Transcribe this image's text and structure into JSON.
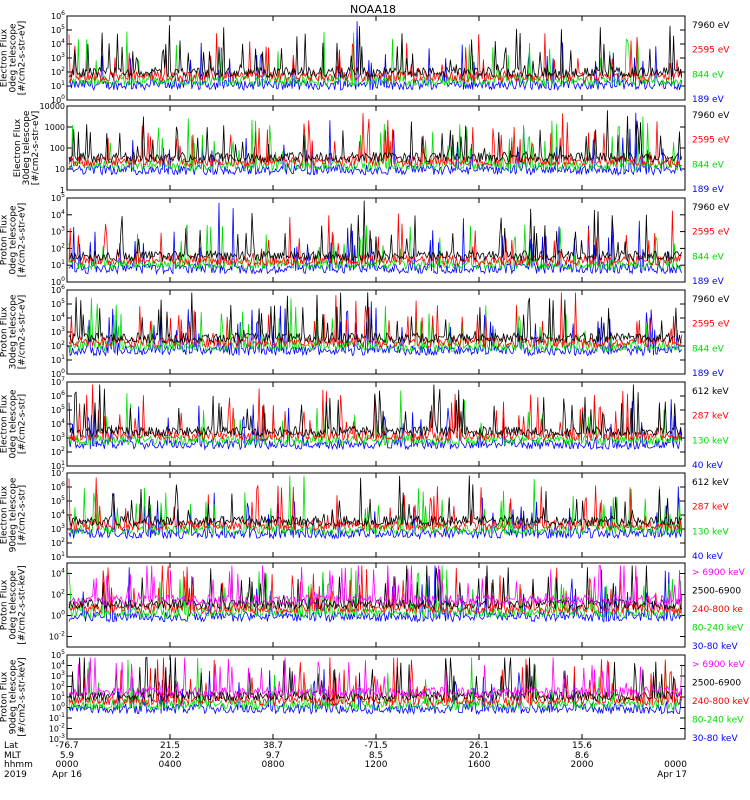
{
  "title": "NOAA18",
  "colors": {
    "black": "#000000",
    "red": "#ff0000",
    "green": "#00dd00",
    "blue": "#0000ff",
    "magenta": "#ff00ff"
  },
  "chart_data": [
    {
      "type": "line",
      "ylabel": [
        "TED",
        "Electron Flux",
        "0deg telescope",
        "[#/cm2-s-str-eV]"
      ],
      "yscale": "log",
      "ylim_exp": [
        0,
        6
      ],
      "yticks": [
        "10^0",
        "10^1",
        "10^2",
        "10^3",
        "10^4",
        "10^5",
        "10^6"
      ],
      "series": [
        {
          "name": "7960 eV",
          "color": "#000000"
        },
        {
          "name": "2595 eV",
          "color": "#ff0000"
        },
        {
          "name": "844 eV",
          "color": "#00dd00"
        },
        {
          "name": "189 eV",
          "color": "#0000ff"
        }
      ]
    },
    {
      "type": "line",
      "ylabel": [
        "Electron Flux",
        "30deg telescope",
        "[#/cm2-s-str-eV]"
      ],
      "yscale": "log",
      "ylim_exp": [
        0,
        4
      ],
      "yticks": [
        "1",
        "10",
        "100",
        "1000",
        "10000"
      ],
      "series": [
        {
          "name": "7960 eV",
          "color": "#000000"
        },
        {
          "name": "2595 eV",
          "color": "#ff0000"
        },
        {
          "name": "844 eV",
          "color": "#00dd00"
        },
        {
          "name": "189 eV",
          "color": "#0000ff"
        }
      ]
    },
    {
      "type": "line",
      "ylabel": [
        "TED",
        "Proton Flux",
        "0deg telescope",
        "[#/cm2-s-str-eV]"
      ],
      "yscale": "log",
      "ylim_exp": [
        0,
        5
      ],
      "yticks": [
        "10^0",
        "10^1",
        "10^2",
        "10^3",
        "10^4",
        "10^5"
      ],
      "series": [
        {
          "name": "7960 eV",
          "color": "#000000"
        },
        {
          "name": "2595 eV",
          "color": "#ff0000"
        },
        {
          "name": "844 eV",
          "color": "#00dd00"
        },
        {
          "name": "189 eV",
          "color": "#0000ff"
        }
      ]
    },
    {
      "type": "line",
      "ylabel": [
        "TED",
        "Proton Flux",
        "30deg telescope",
        "[#/cm2-s-str-eV]"
      ],
      "yscale": "log",
      "ylim_exp": [
        0,
        6
      ],
      "yticks": [
        "10^0",
        "10^1",
        "10^2",
        "10^3",
        "10^4",
        "10^5",
        "10^6"
      ],
      "series": [
        {
          "name": "7960 eV",
          "color": "#000000"
        },
        {
          "name": "2595 eV",
          "color": "#ff0000"
        },
        {
          "name": "844 eV",
          "color": "#00dd00"
        },
        {
          "name": "189 eV",
          "color": "#0000ff"
        }
      ]
    },
    {
      "type": "line",
      "ylabel": [
        "MEPED",
        "Electron Flux",
        "0deg telescope",
        "[#/cm2-s-str]"
      ],
      "yscale": "log",
      "ylim_exp": [
        1,
        7
      ],
      "yticks": [
        "10^1",
        "10^2",
        "10^3",
        "10^4",
        "10^5",
        "10^6",
        "10^7"
      ],
      "series": [
        {
          "name": "612 keV",
          "color": "#000000"
        },
        {
          "name": "287 keV",
          "color": "#ff0000"
        },
        {
          "name": "130 keV",
          "color": "#00dd00"
        },
        {
          "name": "40 keV",
          "color": "#0000ff"
        }
      ]
    },
    {
      "type": "line",
      "ylabel": [
        "MEPED",
        "Electron Flux",
        "90deg telescope",
        "[#/cm2-s-str]"
      ],
      "yscale": "log",
      "ylim_exp": [
        1,
        7
      ],
      "yticks": [
        "10^1",
        "10^2",
        "10^3",
        "10^4",
        "10^5",
        "10^6",
        "10^7"
      ],
      "series": [
        {
          "name": "612 keV",
          "color": "#000000"
        },
        {
          "name": "287 keV",
          "color": "#ff0000"
        },
        {
          "name": "130 keV",
          "color": "#00dd00"
        },
        {
          "name": "40 keV",
          "color": "#0000ff"
        }
      ]
    },
    {
      "type": "line",
      "ylabel": [
        "MEPED",
        "Proton Flux",
        "0deg telescope",
        "[#/cm2-s-str-keV]"
      ],
      "yscale": "log",
      "ylim_exp": [
        -3,
        5
      ],
      "yticks": [
        "10^-2",
        "10^0",
        "10^2",
        "10^4"
      ],
      "series": [
        {
          "name": "> 6900 keV",
          "color": "#ff00ff"
        },
        {
          "name": "2500-6900",
          "color": "#000000"
        },
        {
          "name": "240-800 ke",
          "color": "#ff0000"
        },
        {
          "name": "80-240 keV",
          "color": "#00dd00"
        },
        {
          "name": "30-80 keV",
          "color": "#0000ff"
        }
      ]
    },
    {
      "type": "line",
      "ylabel": [
        "MEPED",
        "Proton Flux",
        "90deg telescope",
        "[#/cm2-s-str-keV]"
      ],
      "yscale": "log",
      "ylim_exp": [
        -3,
        5
      ],
      "yticks": [
        "10^-3",
        "10^-2",
        "10^-1",
        "10^0",
        "10^1",
        "10^2",
        "10^3",
        "10^4",
        "10^5"
      ],
      "series": [
        {
          "name": "> 6900 keV",
          "color": "#ff00ff"
        },
        {
          "name": "2500-6900",
          "color": "#000000"
        },
        {
          "name": "240-800 keV",
          "color": "#ff0000"
        },
        {
          "name": "80-240 keV",
          "color": "#00dd00"
        },
        {
          "name": "30-80 keV",
          "color": "#0000ff"
        }
      ]
    }
  ],
  "x_axis": {
    "row_labels": [
      "Lat",
      "MLT",
      "hhmm",
      "2019"
    ],
    "ticks": [
      {
        "lat": "-76.7",
        "mlt": "5.9",
        "hhmm": "0000",
        "date": "Apr 16"
      },
      {
        "lat": "21.5",
        "mlt": "20.2",
        "hhmm": "0400",
        "date": ""
      },
      {
        "lat": "38.7",
        "mlt": "9.7",
        "hhmm": "0800",
        "date": ""
      },
      {
        "lat": "-71.5",
        "mlt": "8.5",
        "hhmm": "1200",
        "date": ""
      },
      {
        "lat": "26.1",
        "mlt": "20.2",
        "hhmm": "1600",
        "date": ""
      },
      {
        "lat": "15.6",
        "mlt": "8.6",
        "hhmm": "2000",
        "date": ""
      },
      {
        "lat": "",
        "mlt": "",
        "hhmm": "0000",
        "date": "Apr 17"
      }
    ]
  }
}
